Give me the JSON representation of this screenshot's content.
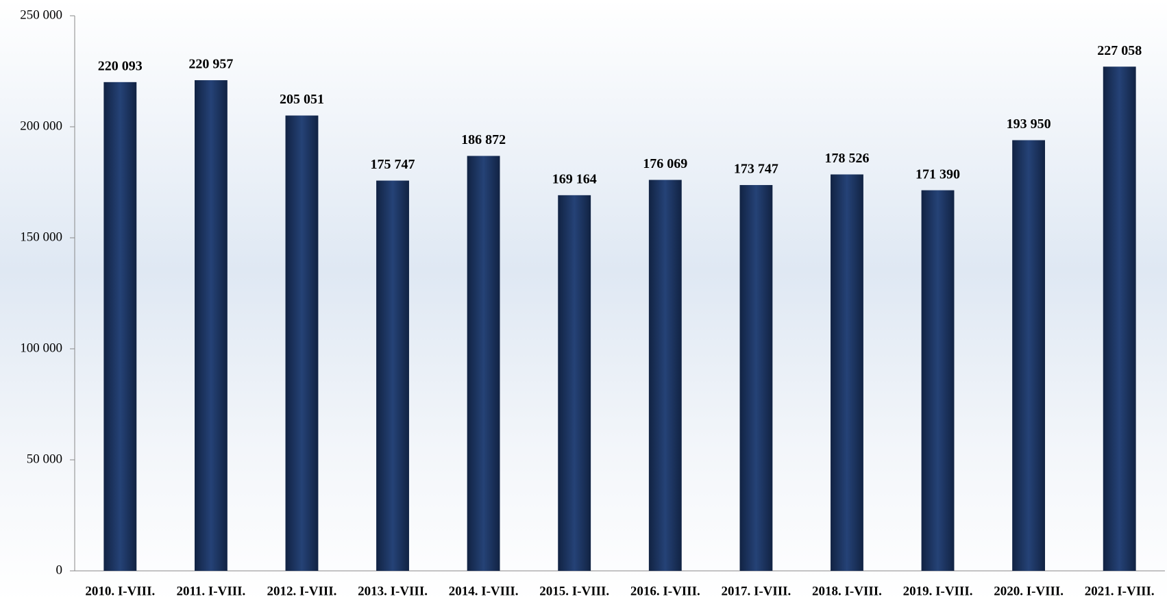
{
  "chart_data": {
    "type": "bar",
    "categories": [
      "2010. I-VIII.",
      "2011. I-VIII.",
      "2012. I-VIII.",
      "2013. I-VIII.",
      "2014. I-VIII.",
      "2015. I-VIII.",
      "2016. I-VIII.",
      "2017. I-VIII.",
      "2018. I-VIII.",
      "2019. I-VIII.",
      "2020. I-VIII.",
      "2021. I-VIII."
    ],
    "values": [
      220093,
      220957,
      205051,
      175747,
      186872,
      169164,
      176069,
      173747,
      178526,
      171390,
      193950,
      227058
    ],
    "value_labels": [
      "220 093",
      "220 957",
      "205 051",
      "175 747",
      "186 872",
      "169 164",
      "176 069",
      "173 747",
      "178 526",
      "171 390",
      "193 950",
      "227 058"
    ],
    "color": "#1f3864",
    "ylim": [
      0,
      250000
    ],
    "yticks": [
      0,
      {
        "value": 50000,
        "label": "50 000"
      },
      {
        "value": 100000,
        "label": "100 000"
      },
      {
        "value": 150000,
        "label": "150 000"
      },
      {
        "value": 200000,
        "label": "200 000"
      },
      {
        "value": 250000,
        "label": "250 000"
      }
    ],
    "grid": false
  }
}
